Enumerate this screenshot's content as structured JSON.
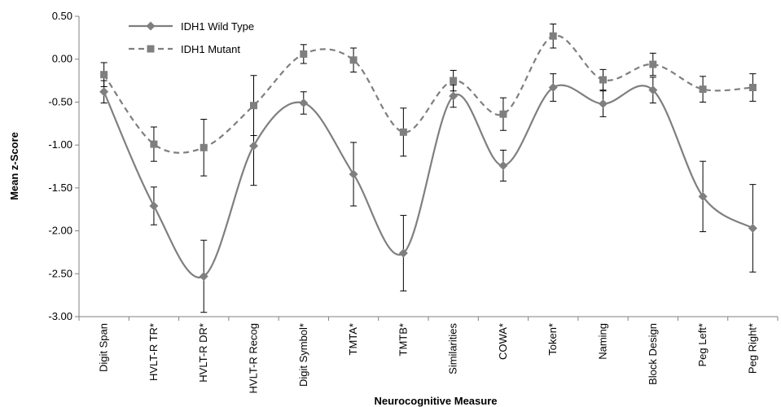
{
  "chart_data": {
    "type": "line",
    "title": "",
    "xlabel": "Neurocognitive Measure",
    "ylabel": "Mean z-Score",
    "ylim": [
      -3.0,
      0.5
    ],
    "ytick_step": 0.5,
    "ytick_labels": [
      "0.50",
      "0.00",
      "-0.50",
      "-1.00",
      "-1.50",
      "-2.00",
      "-2.50",
      "-3.00"
    ],
    "grid": false,
    "legend_position": "top-left",
    "categories": [
      "Digit Span",
      "HVLT-R TR*",
      "HVLT-R DR*",
      "HVLT-R Recog",
      "Digit Symbol*",
      "TMTA*",
      "TMTB*",
      "Similarities",
      "COWA*",
      "Token*",
      "Naming",
      "Block Design",
      "Peg Left*",
      "Peg Right*"
    ],
    "series": [
      {
        "name": "IDH1 Wild Type",
        "marker": "diamond",
        "line_style": "solid",
        "color": "#7f7f7f",
        "values": [
          -0.38,
          -1.71,
          -2.53,
          -1.01,
          -0.51,
          -1.34,
          -2.26,
          -0.43,
          -1.24,
          -0.33,
          -0.52,
          -0.36,
          -1.6,
          -1.97
        ],
        "error": [
          0.13,
          0.22,
          0.42,
          0.46,
          0.13,
          0.37,
          0.44,
          0.13,
          0.18,
          0.16,
          0.15,
          0.15,
          0.41,
          0.51
        ]
      },
      {
        "name": "IDH1 Mutant",
        "marker": "square",
        "line_style": "dashed",
        "color": "#7f7f7f",
        "values": [
          -0.18,
          -0.99,
          -1.03,
          -0.54,
          0.06,
          -0.01,
          -0.85,
          -0.25,
          -0.64,
          0.27,
          -0.24,
          -0.06,
          -0.35,
          -0.33
        ],
        "error": [
          0.14,
          0.2,
          0.33,
          0.35,
          0.11,
          0.14,
          0.28,
          0.12,
          0.19,
          0.14,
          0.12,
          0.13,
          0.15,
          0.16
        ]
      }
    ]
  }
}
